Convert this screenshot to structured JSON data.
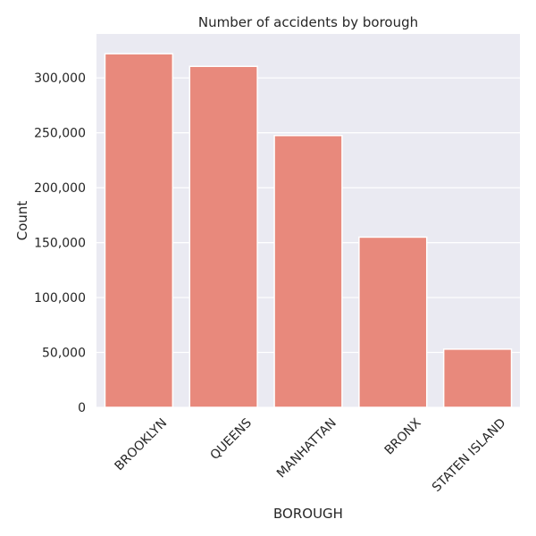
{
  "chart_data": {
    "type": "bar",
    "title": "Number of accidents by borough",
    "xlabel": "BOROUGH",
    "ylabel": "Count",
    "categories": [
      "BROOKLYN",
      "QUEENS",
      "MANHATTAN",
      "BRONX",
      "STATEN ISLAND"
    ],
    "values": [
      322000,
      310500,
      247500,
      155000,
      53000
    ],
    "ylim": [
      0,
      340000
    ],
    "yticks": [
      0,
      50000,
      100000,
      150000,
      200000,
      250000,
      300000
    ],
    "ytick_labels": [
      "0",
      "50,000",
      "100,000",
      "150,000",
      "200,000",
      "250,000",
      "300,000"
    ],
    "bar_color": "#e8897c",
    "background_color": "#eaeaf2",
    "grid": true
  }
}
